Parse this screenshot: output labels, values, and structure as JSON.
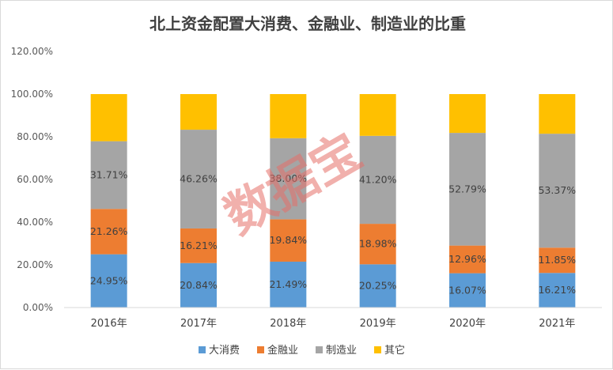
{
  "chart_data": {
    "type": "bar",
    "stacked": true,
    "title": "北上资金配置大消费、金融业、制造业的比重",
    "categories": [
      "2016年",
      "2017年",
      "2018年",
      "2019年",
      "2020年",
      "2021年"
    ],
    "yticks": [
      "0.00%",
      "20.00%",
      "40.00%",
      "60.00%",
      "80.00%",
      "100.00%",
      "120.00%"
    ],
    "ylim": [
      0,
      120
    ],
    "grid": false,
    "legend_position": "bottom",
    "series": [
      {
        "name": "大消费",
        "color": "#5b9bd5",
        "values": [
          24.95,
          20.84,
          21.49,
          20.25,
          16.07,
          16.21
        ],
        "labels": [
          "24.95%",
          "20.84%",
          "21.49%",
          "20.25%",
          "16.07%",
          "16.21%"
        ]
      },
      {
        "name": "金融业",
        "color": "#ed7d31",
        "values": [
          21.26,
          16.21,
          19.84,
          18.98,
          12.96,
          11.85
        ],
        "labels": [
          "21.26%",
          "16.21%",
          "19.84%",
          "18.98%",
          "12.96%",
          "11.85%"
        ]
      },
      {
        "name": "制造业",
        "color": "#a5a5a5",
        "values": [
          31.71,
          46.26,
          38.0,
          41.2,
          52.79,
          53.37
        ],
        "labels": [
          "31.71%",
          "46.26%",
          "38.00%",
          "41.20%",
          "52.79%",
          "53.37%"
        ]
      },
      {
        "name": "其它",
        "color": "#ffc000",
        "values": [
          22.08,
          16.69,
          20.67,
          19.57,
          18.18,
          18.57
        ],
        "labels": []
      }
    ]
  },
  "watermark": "数据宝"
}
